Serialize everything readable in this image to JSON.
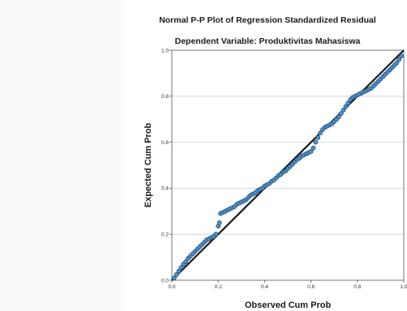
{
  "chart_data": {
    "type": "scatter",
    "title": "Normal P-P Plot of Regression Standardized Residual",
    "subtitle": "Dependent Variable: Produktivitas Mahasiswa",
    "xlabel": "Observed Cum Prob",
    "ylabel": "Expected Cum Prob",
    "xlim": [
      0,
      1
    ],
    "ylim": [
      0,
      1
    ],
    "x_ticks": [
      "0.0",
      "0.2",
      "0.4",
      "0.6",
      "0.8",
      "1.0"
    ],
    "y_ticks": [
      "0.0",
      "0.2",
      "0.4",
      "0.6",
      "0.8",
      "1.0"
    ],
    "grid": "horizontal",
    "reference_line": [
      [
        0,
        0
      ],
      [
        1,
        1
      ]
    ],
    "colors": {
      "marker_fill": "#4a90c8",
      "marker_stroke": "#1f3f60",
      "line": "#1a1a1a",
      "grid": "#d0d0d0"
    },
    "points": [
      [
        0.01,
        0.01
      ],
      [
        0.02,
        0.025
      ],
      [
        0.03,
        0.04
      ],
      [
        0.04,
        0.055
      ],
      [
        0.05,
        0.07
      ],
      [
        0.06,
        0.08
      ],
      [
        0.07,
        0.095
      ],
      [
        0.08,
        0.105
      ],
      [
        0.09,
        0.115
      ],
      [
        0.1,
        0.125
      ],
      [
        0.11,
        0.135
      ],
      [
        0.12,
        0.145
      ],
      [
        0.13,
        0.155
      ],
      [
        0.14,
        0.165
      ],
      [
        0.15,
        0.175
      ],
      [
        0.16,
        0.18
      ],
      [
        0.17,
        0.185
      ],
      [
        0.18,
        0.19
      ],
      [
        0.19,
        0.2
      ],
      [
        0.2,
        0.235
      ],
      [
        0.205,
        0.25
      ],
      [
        0.21,
        0.29
      ],
      [
        0.22,
        0.295
      ],
      [
        0.23,
        0.3
      ],
      [
        0.24,
        0.305
      ],
      [
        0.25,
        0.31
      ],
      [
        0.26,
        0.315
      ],
      [
        0.27,
        0.32
      ],
      [
        0.28,
        0.33
      ],
      [
        0.29,
        0.335
      ],
      [
        0.3,
        0.34
      ],
      [
        0.31,
        0.345
      ],
      [
        0.32,
        0.35
      ],
      [
        0.33,
        0.36
      ],
      [
        0.34,
        0.37
      ],
      [
        0.35,
        0.375
      ],
      [
        0.36,
        0.38
      ],
      [
        0.37,
        0.39
      ],
      [
        0.38,
        0.395
      ],
      [
        0.39,
        0.4
      ],
      [
        0.4,
        0.41
      ],
      [
        0.41,
        0.415
      ],
      [
        0.42,
        0.42
      ],
      [
        0.43,
        0.43
      ],
      [
        0.44,
        0.435
      ],
      [
        0.45,
        0.445
      ],
      [
        0.46,
        0.455
      ],
      [
        0.47,
        0.46
      ],
      [
        0.48,
        0.47
      ],
      [
        0.49,
        0.475
      ],
      [
        0.5,
        0.485
      ],
      [
        0.51,
        0.495
      ],
      [
        0.52,
        0.505
      ],
      [
        0.53,
        0.515
      ],
      [
        0.54,
        0.525
      ],
      [
        0.55,
        0.53
      ],
      [
        0.56,
        0.54
      ],
      [
        0.57,
        0.545
      ],
      [
        0.58,
        0.55
      ],
      [
        0.59,
        0.555
      ],
      [
        0.6,
        0.56
      ],
      [
        0.61,
        0.575
      ],
      [
        0.62,
        0.6
      ],
      [
        0.63,
        0.62
      ],
      [
        0.64,
        0.64
      ],
      [
        0.65,
        0.655
      ],
      [
        0.66,
        0.665
      ],
      [
        0.67,
        0.67
      ],
      [
        0.68,
        0.675
      ],
      [
        0.69,
        0.68
      ],
      [
        0.7,
        0.69
      ],
      [
        0.71,
        0.7
      ],
      [
        0.72,
        0.71
      ],
      [
        0.73,
        0.725
      ],
      [
        0.74,
        0.74
      ],
      [
        0.75,
        0.755
      ],
      [
        0.76,
        0.77
      ],
      [
        0.77,
        0.785
      ],
      [
        0.78,
        0.795
      ],
      [
        0.79,
        0.8
      ],
      [
        0.8,
        0.805
      ],
      [
        0.81,
        0.81
      ],
      [
        0.82,
        0.815
      ],
      [
        0.83,
        0.82
      ],
      [
        0.84,
        0.825
      ],
      [
        0.85,
        0.83
      ],
      [
        0.86,
        0.835
      ],
      [
        0.87,
        0.845
      ],
      [
        0.88,
        0.855
      ],
      [
        0.89,
        0.865
      ],
      [
        0.9,
        0.875
      ],
      [
        0.91,
        0.885
      ],
      [
        0.92,
        0.895
      ],
      [
        0.93,
        0.905
      ],
      [
        0.94,
        0.915
      ],
      [
        0.95,
        0.925
      ],
      [
        0.96,
        0.935
      ],
      [
        0.97,
        0.945
      ],
      [
        0.98,
        0.96
      ],
      [
        0.99,
        0.975
      ]
    ]
  }
}
